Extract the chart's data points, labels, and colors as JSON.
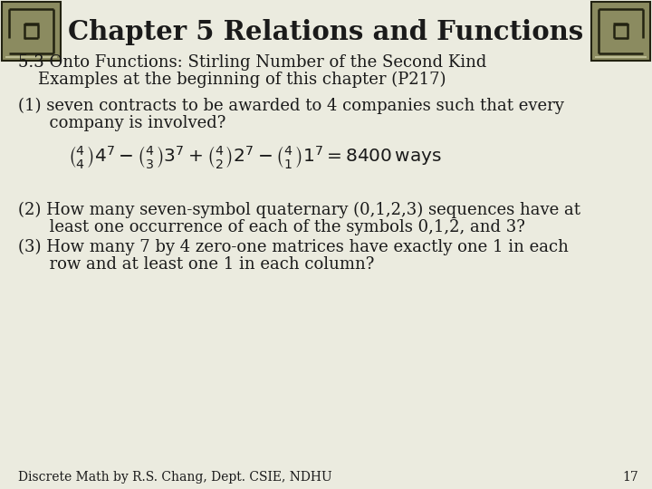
{
  "title": "Chapter 5 Relations and Functions",
  "subtitle": "5.3 Onto Functions: Stirling Number of the Second Kind",
  "subtitle2": "Examples at the beginning of this chapter (P217)",
  "item1_line1": "(1) seven contracts to be awarded to 4 companies such that every",
  "item1_line2": "      company is involved?",
  "item2_line1": "(2) How many seven-symbol quaternary (0,1,2,3) sequences have at",
  "item2_line2": "      least one occurrence of each of the symbols 0,1,2, and 3?",
  "item3_line1": "(3) How many 7 by 4 zero-one matrices have exactly one 1 in each",
  "item3_line2": "      row and at least one 1 in each column?",
  "footer": "Discrete Math by R.S. Chang, Dept. CSIE, NDHU",
  "page_num": "17",
  "bg_color": "#ebebdf",
  "title_color": "#1a1a1a",
  "text_color": "#1a1a1a",
  "orn_border": "#222211",
  "orn_fill": "#8b8b60",
  "orn_light": "#c8c8a0"
}
